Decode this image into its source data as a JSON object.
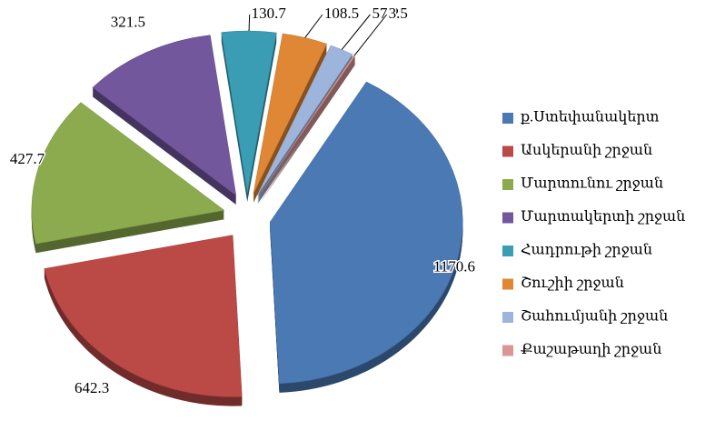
{
  "chart_data": {
    "type": "pie",
    "categories": [
      "ք.Ստեփանակերտ",
      "Ասկերանի շրջան",
      "Մարտունու շրջան",
      "Մարտակերտի շրջան",
      "Հադրութի շրջան",
      "Շուշիի շրջան",
      "Շահումյանի շրջան",
      "Քաշաթաղի շրջան"
    ],
    "values": [
      1170.6,
      642.3,
      427.7,
      321.5,
      130.7,
      108.5,
      57.2,
      3.5
    ],
    "colors": [
      "#4a79b4",
      "#bb4a47",
      "#8cab4f",
      "#72579c",
      "#3b9db3",
      "#e08736",
      "#9db4dc",
      "#d99694"
    ],
    "legend": "right"
  }
}
